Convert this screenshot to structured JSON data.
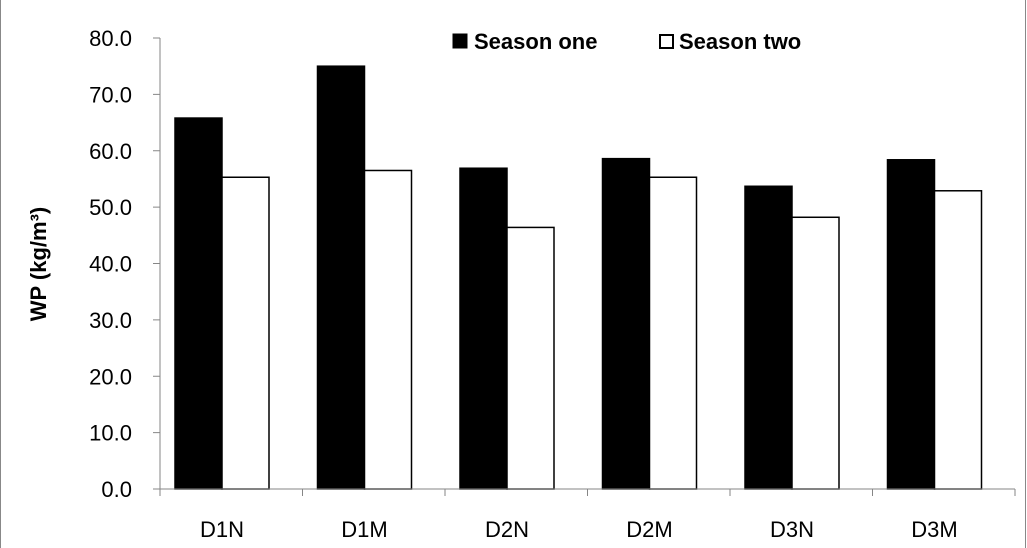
{
  "chart_data": {
    "type": "bar",
    "categories": [
      "D1N",
      "D1M",
      "D2N",
      "D2M",
      "D3N",
      "D3M"
    ],
    "series": [
      {
        "name": "Season one",
        "values": [
          65.8,
          75.0,
          56.9,
          58.6,
          53.7,
          58.4
        ],
        "color": "#000000"
      },
      {
        "name": "Season two",
        "values": [
          55.3,
          56.5,
          46.4,
          55.3,
          48.2,
          52.9
        ],
        "color": "#ffffff"
      }
    ],
    "yticks": [
      "0.0",
      "10.0",
      "20.0",
      "30.0",
      "40.0",
      "50.0",
      "60.0",
      "70.0",
      "80.0"
    ],
    "ylabel": "WP (kg/m³)",
    "xlabel": "",
    "ylim": [
      0,
      80
    ],
    "grid": false,
    "legend_position": "top-right"
  }
}
